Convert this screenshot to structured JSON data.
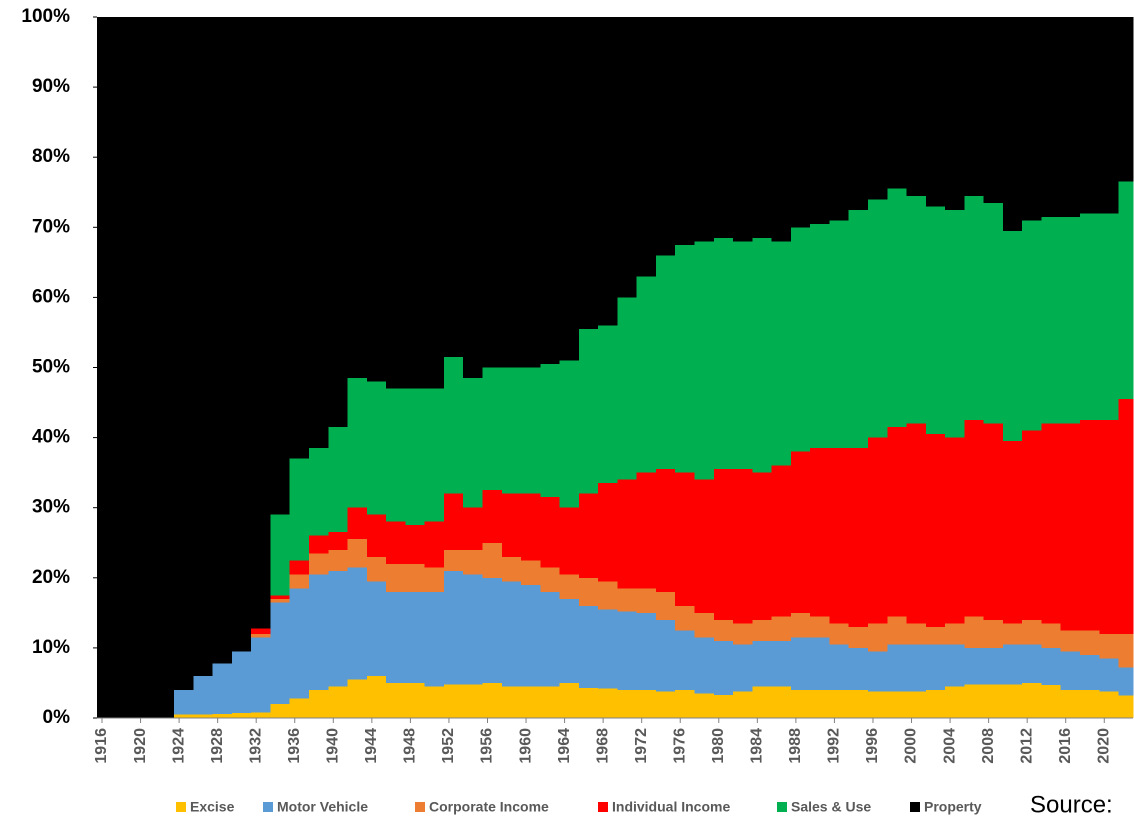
{
  "chart_data": {
    "type": "stacked_area",
    "x": [
      1916,
      1918,
      1920,
      1922,
      1924,
      1926,
      1928,
      1930,
      1932,
      1934,
      1936,
      1938,
      1940,
      1942,
      1944,
      1946,
      1948,
      1950,
      1952,
      1954,
      1956,
      1958,
      1960,
      1962,
      1964,
      1966,
      1968,
      1970,
      1972,
      1974,
      1976,
      1978,
      1980,
      1982,
      1984,
      1986,
      1988,
      1990,
      1992,
      1994,
      1996,
      1998,
      2000,
      2002,
      2004,
      2006,
      2008,
      2010,
      2012,
      2014,
      2016,
      2018,
      2020,
      2022
    ],
    "series": [
      {
        "name": "Excise",
        "color": "#ffc000",
        "values": [
          0,
          0,
          0,
          0,
          0.5,
          0.5,
          0.6,
          0.7,
          0.8,
          2,
          2.8,
          4,
          4.5,
          5.5,
          6,
          5,
          5,
          4.5,
          4.8,
          4.8,
          5,
          4.5,
          4.5,
          4.5,
          5,
          4.3,
          4.2,
          4,
          4,
          3.8,
          4,
          3.5,
          3.3,
          3.8,
          4.5,
          4.5,
          4,
          4,
          4,
          4,
          3.8,
          3.8,
          3.8,
          4,
          4.5,
          4.8,
          4.8,
          4.8,
          5,
          4.7,
          4,
          4,
          3.8,
          3.2
        ]
      },
      {
        "name": "Motor Vehicle",
        "color": "#5b9bd5",
        "values": [
          0,
          0,
          0,
          0,
          3.5,
          5.5,
          7.2,
          8.8,
          10.7,
          14.5,
          15.7,
          16.5,
          16.5,
          16,
          13.5,
          13,
          13,
          13.5,
          16.2,
          15.7,
          15,
          15,
          14.5,
          13.5,
          12,
          11.7,
          11.3,
          11.2,
          11,
          10.2,
          8.5,
          8,
          7.7,
          6.7,
          6.5,
          6.5,
          7.5,
          7.5,
          6.5,
          6,
          5.7,
          6.7,
          6.7,
          6.5,
          6,
          5.2,
          5.2,
          5.7,
          5.5,
          5.3,
          5.5,
          5,
          4.7,
          4
        ]
      },
      {
        "name": "Corporate Income",
        "color": "#ed7d31",
        "values": [
          0,
          0,
          0,
          0,
          0,
          0,
          0,
          0,
          0.5,
          0.5,
          2,
          3,
          3,
          4,
          3.5,
          4,
          4,
          3.5,
          3,
          3.5,
          5,
          3.5,
          3.5,
          3.5,
          3.5,
          4,
          4,
          3.3,
          3.5,
          4,
          3.5,
          3.5,
          3,
          3,
          3,
          3.5,
          3.5,
          3,
          3,
          3,
          4,
          4,
          3,
          2.5,
          3,
          4.5,
          4,
          3,
          3.5,
          3.5,
          3,
          3.5,
          3.5,
          4.8
        ]
      },
      {
        "name": "Individual Income",
        "color": "#ff0000",
        "values": [
          0,
          0,
          0,
          0,
          0,
          0,
          0,
          0,
          0.8,
          0.5,
          2,
          2.5,
          2.5,
          4.5,
          6,
          6,
          5.5,
          6.5,
          8,
          6,
          7.5,
          9,
          9.5,
          10,
          9.5,
          12,
          14,
          15.5,
          16.5,
          17.5,
          19,
          19,
          21.5,
          22,
          21,
          21.5,
          23,
          24,
          25,
          25.5,
          26.5,
          27,
          28.5,
          27.5,
          26.5,
          28,
          28,
          26,
          27,
          28.5,
          29.5,
          30,
          30.5,
          33.5
        ]
      },
      {
        "name": "Sales & Use",
        "color": "#00b050",
        "values": [
          0,
          0,
          0,
          0,
          0,
          0,
          0,
          0,
          0,
          11.5,
          14.5,
          12.5,
          15,
          18.5,
          19,
          19,
          19.5,
          19,
          19.5,
          18.5,
          17.5,
          18,
          18,
          19,
          21,
          23.5,
          22.5,
          26,
          28,
          30.5,
          32.5,
          34,
          33,
          32.5,
          33.5,
          32,
          32,
          32,
          32.5,
          34,
          34,
          34,
          32.5,
          32.5,
          32.5,
          32,
          31.5,
          30,
          30,
          29.5,
          29.5,
          29.5,
          29.5,
          31
        ]
      },
      {
        "name": "Property",
        "color": "#000000",
        "values": [
          100,
          100,
          100,
          100,
          96,
          94,
          92.2,
          90.5,
          87.2,
          71,
          63,
          61.5,
          58.5,
          51.5,
          52,
          53,
          53,
          53,
          48.5,
          51.5,
          50,
          50,
          50,
          49.5,
          49,
          44.5,
          44,
          40,
          37,
          34,
          32.5,
          32,
          31.5,
          32,
          31.5,
          32,
          30,
          29.5,
          29,
          27.5,
          26,
          24.5,
          25.5,
          27,
          27.5,
          25.5,
          26.5,
          30.5,
          29,
          28.5,
          28.5,
          28,
          28,
          23.5
        ]
      }
    ],
    "xlim": [
      1916,
      2023.5
    ],
    "xticks": [
      1916,
      1920,
      1924,
      1928,
      1932,
      1936,
      1940,
      1944,
      1948,
      1952,
      1956,
      1960,
      1964,
      1968,
      1972,
      1976,
      1980,
      1984,
      1988,
      1992,
      1996,
      2000,
      2004,
      2008,
      2012,
      2016,
      2020
    ],
    "ylim": [
      0,
      100
    ],
    "yticks": [
      {
        "value": 0,
        "label": "0%"
      },
      {
        "value": 10,
        "label": "10%"
      },
      {
        "value": 20,
        "label": "20%"
      },
      {
        "value": 30,
        "label": "30%"
      },
      {
        "value": 40,
        "label": "40%"
      },
      {
        "value": 50,
        "label": "50%"
      },
      {
        "value": 60,
        "label": "60%"
      },
      {
        "value": 70,
        "label": "70%"
      },
      {
        "value": 80,
        "label": "80%"
      },
      {
        "value": 90,
        "label": "90%"
      },
      {
        "value": 100,
        "label": "100%"
      }
    ],
    "legend": "bottom",
    "annotation": "Source:"
  }
}
